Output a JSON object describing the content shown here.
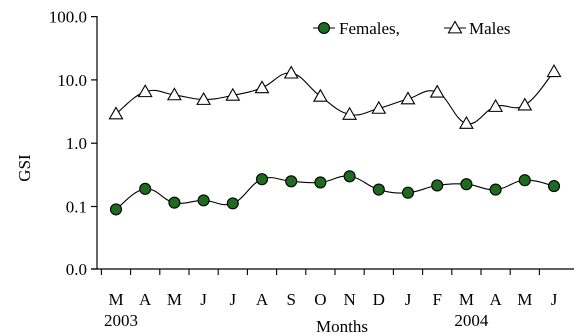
{
  "chart_data": {
    "type": "line",
    "title": "",
    "xlabel": "Months",
    "ylabel": "GSI",
    "y_scale": "log-like",
    "y_ticks": [
      "0.0",
      "0.1",
      "1.0",
      "10.0",
      "100.0"
    ],
    "categories": [
      "M",
      "A",
      "M",
      "J",
      "J",
      "A",
      "S",
      "O",
      "N",
      "D",
      "J",
      "F",
      "M",
      "A",
      "M",
      "J"
    ],
    "year_labels": [
      {
        "label": "2003",
        "category_index": 0
      },
      {
        "label": "2004",
        "category_index": 12
      }
    ],
    "legend_position": "top-right",
    "series": [
      {
        "name": "Females,",
        "marker": "circle",
        "marker_color": "#1e6b1e",
        "values": [
          0.09,
          0.19,
          0.115,
          0.125,
          0.112,
          0.27,
          0.25,
          0.24,
          0.3,
          0.185,
          0.165,
          0.215,
          0.225,
          0.185,
          0.26,
          0.21
        ]
      },
      {
        "name": "Males",
        "marker": "triangle",
        "marker_color": "#ffffff",
        "values": [
          2.9,
          6.5,
          5.8,
          4.9,
          5.7,
          7.5,
          12.8,
          5.5,
          2.85,
          3.55,
          5.0,
          6.4,
          2.05,
          3.8,
          4.0,
          13.5
        ]
      }
    ]
  }
}
